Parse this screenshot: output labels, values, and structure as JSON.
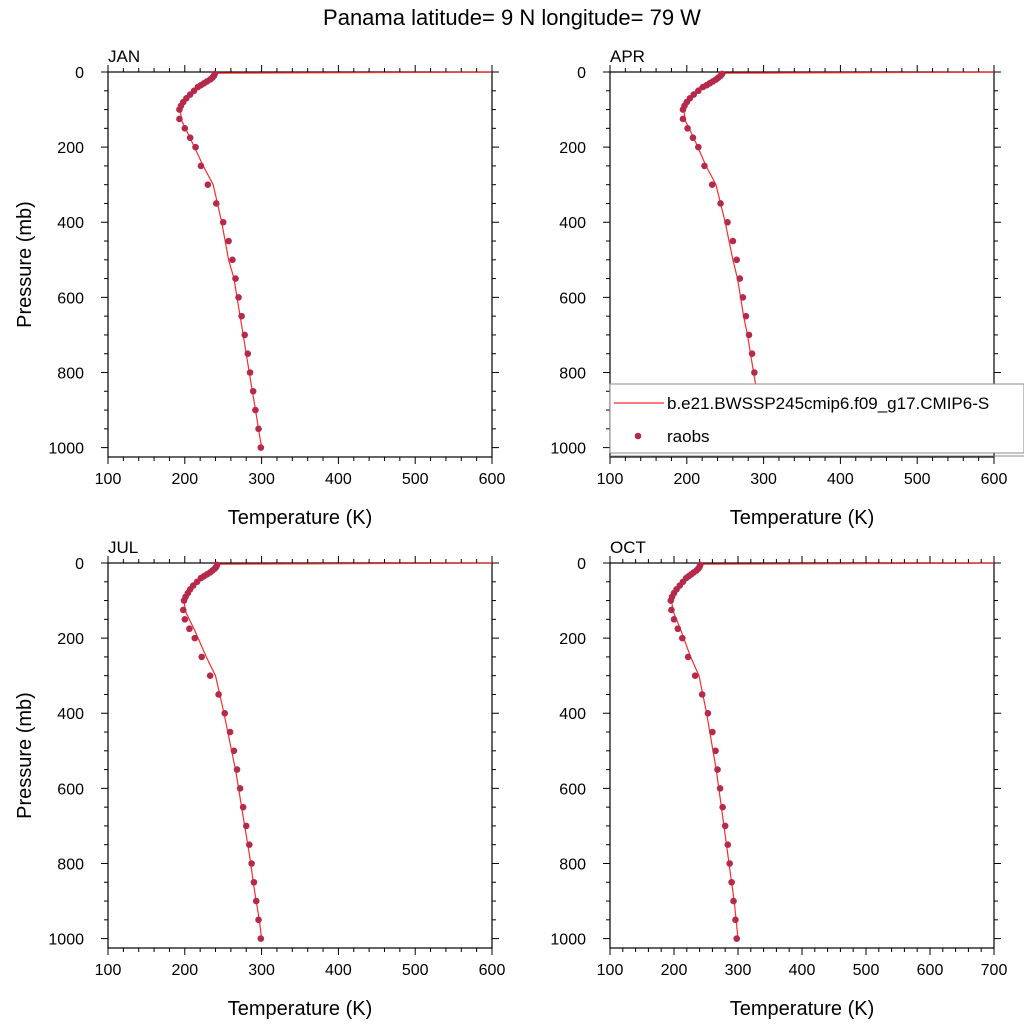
{
  "figure": {
    "title": "Panama  latitude= 9 N longitude= 79 W"
  },
  "colors": {
    "model_line": "#ff2b2b",
    "obs_marker": "#b52a4a",
    "axis": "#000000"
  },
  "legend": {
    "items": [
      {
        "label": "b.e21.BWSSP245cmip6.f09_g17.CMIP6-S",
        "kind": "line"
      },
      {
        "label": "raobs",
        "kind": "marker"
      }
    ]
  },
  "chart_data": [
    {
      "type": "line",
      "panel_label": "JAN",
      "xlabel": "Temperature (K)",
      "ylabel": "Pressure (mb)",
      "xlim": [
        100,
        600
      ],
      "ylim": [
        1025,
        0
      ],
      "y_reversed": true,
      "xticks": [
        100,
        200,
        300,
        400,
        500,
        600
      ],
      "yticks": [
        0,
        200,
        400,
        600,
        800,
        1000
      ],
      "series": [
        {
          "name": "b.e21.BWSSP245cmip6.f09_g17.CMIP6-S",
          "style": "line",
          "x": [
            300,
            296,
            292,
            288,
            284,
            280,
            276,
            272,
            268,
            264,
            257,
            248,
            237,
            224,
            208,
            196,
            194,
            198,
            206,
            216,
            226,
            232,
            238,
            245,
            600
          ],
          "y": [
            1000,
            950,
            900,
            850,
            800,
            750,
            700,
            650,
            600,
            550,
            500,
            400,
            300,
            250,
            180,
            130,
            100,
            80,
            60,
            40,
            25,
            15,
            8,
            3,
            0.5
          ]
        },
        {
          "name": "raobs",
          "style": "markers",
          "x": [
            299,
            296,
            292,
            289,
            285,
            282,
            278,
            274,
            270,
            266,
            262,
            257,
            250,
            241,
            230,
            221,
            214,
            207,
            200,
            193,
            193,
            195,
            198,
            202,
            207,
            212,
            217,
            221,
            225,
            229,
            233,
            236,
            238,
            239
          ],
          "y": [
            1000,
            950,
            900,
            850,
            800,
            750,
            700,
            650,
            600,
            550,
            500,
            450,
            400,
            350,
            300,
            250,
            200,
            175,
            150,
            125,
            100,
            90,
            80,
            70,
            60,
            50,
            40,
            35,
            30,
            25,
            20,
            15,
            10,
            5
          ]
        }
      ]
    },
    {
      "type": "line",
      "panel_label": "APR",
      "xlabel": "Temperature (K)",
      "ylabel": "",
      "xlim": [
        100,
        600
      ],
      "ylim": [
        1025,
        0
      ],
      "y_reversed": true,
      "xticks": [
        100,
        200,
        300,
        400,
        500,
        600
      ],
      "yticks": [
        0,
        200,
        400,
        600,
        800,
        1000
      ],
      "series": [
        {
          "name": "b.e21.BWSSP245cmip6.f09_g17.CMIP6-S",
          "style": "line",
          "x": [
            301,
            298,
            295,
            291,
            287,
            283,
            279,
            274,
            270,
            266,
            260,
            250,
            238,
            225,
            210,
            198,
            196,
            199,
            207,
            217,
            228,
            236,
            243,
            251,
            600
          ],
          "y": [
            1000,
            950,
            900,
            850,
            800,
            750,
            700,
            650,
            600,
            550,
            500,
            400,
            300,
            250,
            180,
            130,
            100,
            80,
            60,
            40,
            25,
            15,
            8,
            3,
            0.5
          ]
        },
        {
          "name": "raobs",
          "style": "markers",
          "x": [
            300,
            297,
            294,
            291,
            288,
            285,
            281,
            277,
            273,
            269,
            265,
            260,
            253,
            244,
            233,
            223,
            215,
            208,
            201,
            195,
            195,
            197,
            200,
            204,
            209,
            215,
            221,
            226,
            230,
            234,
            238,
            241,
            244,
            246
          ],
          "y": [
            1000,
            950,
            900,
            850,
            800,
            750,
            700,
            650,
            600,
            550,
            500,
            450,
            400,
            350,
            300,
            250,
            200,
            175,
            150,
            125,
            100,
            90,
            80,
            70,
            60,
            50,
            40,
            35,
            30,
            25,
            20,
            15,
            10,
            5
          ]
        }
      ]
    },
    {
      "type": "line",
      "panel_label": "JUL",
      "xlabel": "Temperature (K)",
      "ylabel": "Pressure (mb)",
      "xlim": [
        100,
        600
      ],
      "ylim": [
        1025,
        0
      ],
      "y_reversed": true,
      "xticks": [
        100,
        200,
        300,
        400,
        500,
        600
      ],
      "yticks": [
        0,
        200,
        400,
        600,
        800,
        1000
      ],
      "series": [
        {
          "name": "b.e21.BWSSP245cmip6.f09_g17.CMIP6-S",
          "style": "line",
          "x": [
            300,
            297,
            293,
            289,
            286,
            282,
            278,
            274,
            270,
            266,
            261,
            251,
            240,
            228,
            213,
            201,
            199,
            202,
            210,
            220,
            230,
            236,
            241,
            247,
            600
          ],
          "y": [
            1000,
            950,
            900,
            850,
            800,
            750,
            700,
            650,
            600,
            550,
            500,
            400,
            300,
            250,
            180,
            130,
            100,
            80,
            60,
            40,
            25,
            15,
            8,
            3,
            0.5
          ]
        },
        {
          "name": "raobs",
          "style": "markers",
          "x": [
            299,
            296,
            293,
            290,
            287,
            284,
            280,
            276,
            272,
            268,
            264,
            259,
            252,
            244,
            233,
            222,
            213,
            206,
            200,
            198,
            199,
            201,
            204,
            207,
            211,
            216,
            221,
            225,
            229,
            233,
            236,
            239,
            241,
            242
          ],
          "y": [
            1000,
            950,
            900,
            850,
            800,
            750,
            700,
            650,
            600,
            550,
            500,
            450,
            400,
            350,
            300,
            250,
            200,
            175,
            150,
            125,
            100,
            90,
            80,
            70,
            60,
            50,
            40,
            35,
            30,
            25,
            20,
            15,
            10,
            5
          ]
        }
      ]
    },
    {
      "type": "line",
      "panel_label": "OCT",
      "xlabel": "Temperature (K)",
      "ylabel": "",
      "xlim": [
        100,
        700
      ],
      "ylim": [
        1025,
        0
      ],
      "y_reversed": true,
      "xticks": [
        100,
        200,
        300,
        400,
        500,
        600,
        700
      ],
      "yticks": [
        0,
        200,
        400,
        600,
        800,
        1000
      ],
      "series": [
        {
          "name": "b.e21.BWSSP245cmip6.f09_g17.CMIP6-S",
          "style": "line",
          "x": [
            300,
            297,
            294,
            290,
            286,
            282,
            278,
            274,
            270,
            266,
            261,
            251,
            239,
            226,
            211,
            199,
            196,
            199,
            207,
            217,
            227,
            233,
            239,
            245,
            700
          ],
          "y": [
            1000,
            950,
            900,
            850,
            800,
            750,
            700,
            650,
            600,
            550,
            500,
            400,
            300,
            250,
            180,
            130,
            100,
            80,
            60,
            40,
            25,
            15,
            8,
            3,
            0.5
          ]
        },
        {
          "name": "raobs",
          "style": "markers",
          "x": [
            298,
            296,
            293,
            290,
            287,
            284,
            280,
            276,
            272,
            268,
            265,
            260,
            253,
            244,
            233,
            222,
            213,
            206,
            200,
            196,
            195,
            197,
            200,
            204,
            209,
            214,
            219,
            223,
            227,
            231,
            235,
            238,
            240,
            241
          ],
          "y": [
            1000,
            950,
            900,
            850,
            800,
            750,
            700,
            650,
            600,
            550,
            500,
            450,
            400,
            350,
            300,
            250,
            200,
            175,
            150,
            125,
            100,
            90,
            80,
            70,
            60,
            50,
            40,
            35,
            30,
            25,
            20,
            15,
            10,
            5
          ]
        }
      ]
    }
  ]
}
